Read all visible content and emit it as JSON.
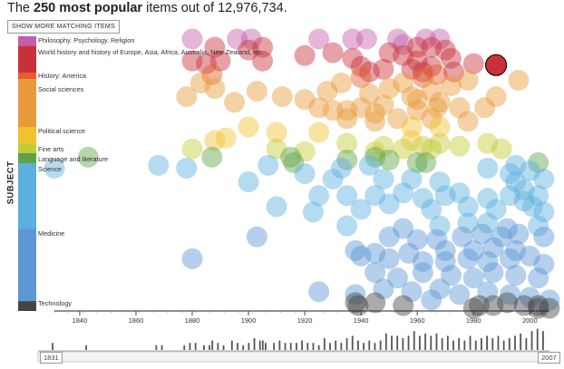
{
  "header": {
    "title_prefix": "The ",
    "title_bold": "250 most popular",
    "title_suffix": " items out of 12,976,734.",
    "show_more_label": "SHOW MORE MATCHING ITEMS"
  },
  "axis": {
    "y_label": "SUBJECT",
    "x_ticks": [
      "1840",
      "1860",
      "1880",
      "1900",
      "1920",
      "1940",
      "1960",
      "1980",
      "2000"
    ]
  },
  "slider": {
    "start_label": "1831",
    "end_label": "2007"
  },
  "chart_data": {
    "type": "scatter",
    "title": "",
    "xlabel": "",
    "ylabel": "SUBJECT",
    "xlim": [
      1831,
      2007
    ],
    "subjects": [
      {
        "name": "Philosophy. Psychology. Religion",
        "from": 0,
        "to": 3.5,
        "color": "#c55ea8"
      },
      {
        "name": "World history and history of Europe, Asia, Africa, Australia, New Zealand, etc.",
        "from": 3.5,
        "to": 13.2,
        "color": "#c8313a"
      },
      {
        "name": "History: America",
        "from": 13.2,
        "to": 15.6,
        "color": "#e25e2b"
      },
      {
        "name": "Social sciences",
        "from": 15.6,
        "to": 33,
        "color": "#e8993a"
      },
      {
        "name": "Political science",
        "from": 33,
        "to": 39,
        "color": "#f2c22e"
      },
      {
        "name": "Fine arts",
        "from": 39,
        "to": 42.5,
        "color": "#c3cc35"
      },
      {
        "name": "Language and literature",
        "from": 42.5,
        "to": 46.2,
        "color": "#5ea347"
      },
      {
        "name": "Science",
        "from": 46.2,
        "to": 70,
        "color": "#5bb0e0"
      },
      {
        "name": "Medicine",
        "from": 70,
        "to": 96.4,
        "color": "#5c97d4"
      },
      {
        "name": "Technology",
        "from": 96.4,
        "to": 100,
        "color": "#444444"
      }
    ],
    "points": [
      [
        1880,
        1
      ],
      [
        1896,
        1
      ],
      [
        1901,
        1
      ],
      [
        1925,
        1
      ],
      [
        1937,
        1
      ],
      [
        1942,
        1
      ],
      [
        1953,
        1
      ],
      [
        1963,
        1
      ],
      [
        1968,
        1
      ],
      [
        1888,
        4
      ],
      [
        1900,
        5
      ],
      [
        1905,
        4
      ],
      [
        1955,
        3
      ],
      [
        1960,
        4
      ],
      [
        1965,
        4
      ],
      [
        1970,
        5
      ],
      [
        1880,
        9
      ],
      [
        1885,
        10
      ],
      [
        1890,
        9
      ],
      [
        1905,
        9
      ],
      [
        1920,
        7
      ],
      [
        1930,
        6
      ],
      [
        1937,
        8
      ],
      [
        1950,
        6
      ],
      [
        1955,
        7
      ],
      [
        1960,
        9
      ],
      [
        1965,
        11
      ],
      [
        1972,
        8
      ],
      [
        1980,
        10
      ],
      [
        1887,
        14
      ],
      [
        1940,
        11
      ],
      [
        1943,
        13
      ],
      [
        1948,
        12
      ],
      [
        1958,
        12
      ],
      [
        1962,
        13
      ],
      [
        1967,
        14
      ],
      [
        1973,
        13
      ],
      [
        1883,
        17
      ],
      [
        1888,
        19
      ],
      [
        1878,
        22
      ],
      [
        1895,
        24
      ],
      [
        1920,
        23
      ],
      [
        1928,
        20
      ],
      [
        1933,
        17
      ],
      [
        1940,
        15
      ],
      [
        1943,
        21
      ],
      [
        1948,
        25
      ],
      [
        1950,
        19
      ],
      [
        1955,
        17
      ],
      [
        1958,
        22
      ],
      [
        1962,
        15
      ],
      [
        1965,
        20
      ],
      [
        1968,
        24
      ],
      [
        1972,
        18
      ],
      [
        1978,
        16
      ],
      [
        1984,
        26
      ],
      [
        1996,
        16
      ],
      [
        1903,
        20
      ],
      [
        1912,
        22
      ],
      [
        1925,
        26
      ],
      [
        1935,
        27
      ],
      [
        1945,
        28
      ],
      [
        1960,
        27
      ],
      [
        1965,
        30
      ],
      [
        1975,
        26
      ],
      [
        1988,
        22
      ],
      [
        1960,
        23
      ],
      [
        1967,
        26
      ],
      [
        1940,
        26
      ],
      [
        1930,
        27
      ],
      [
        1935,
        30
      ],
      [
        1945,
        31
      ],
      [
        1953,
        30
      ],
      [
        1958,
        33
      ],
      [
        1968,
        33
      ],
      [
        1978,
        31
      ],
      [
        1900,
        33
      ],
      [
        1910,
        35
      ],
      [
        1925,
        35
      ],
      [
        1888,
        38
      ],
      [
        1892,
        37
      ],
      [
        1935,
        39
      ],
      [
        1948,
        40
      ],
      [
        1958,
        38
      ],
      [
        1962,
        40
      ],
      [
        1968,
        39
      ],
      [
        1975,
        40
      ],
      [
        1985,
        39
      ],
      [
        1990,
        41
      ],
      [
        1880,
        41
      ],
      [
        1910,
        41
      ],
      [
        1920,
        42
      ],
      [
        1945,
        42
      ],
      [
        1955,
        41
      ],
      [
        1965,
        41
      ],
      [
        1843,
        44
      ],
      [
        1887,
        44
      ],
      [
        1915,
        44
      ],
      [
        1935,
        45
      ],
      [
        1945,
        44
      ],
      [
        1950,
        45
      ],
      [
        1960,
        46
      ],
      [
        1831,
        48
      ],
      [
        1868,
        47
      ],
      [
        1878,
        48
      ],
      [
        1907,
        47
      ],
      [
        1916,
        46
      ],
      [
        1933,
        48
      ],
      [
        1943,
        47
      ],
      [
        1963,
        46
      ],
      [
        1985,
        48
      ],
      [
        1995,
        47
      ],
      [
        2003,
        46
      ],
      [
        1900,
        53
      ],
      [
        1920,
        50
      ],
      [
        1930,
        52
      ],
      [
        1948,
        52
      ],
      [
        1958,
        52
      ],
      [
        1968,
        53
      ],
      [
        1995,
        53
      ],
      [
        1993,
        50
      ],
      [
        2000,
        49
      ],
      [
        2005,
        52
      ],
      [
        1925,
        58
      ],
      [
        1935,
        58
      ],
      [
        1945,
        58
      ],
      [
        1955,
        57
      ],
      [
        1962,
        59
      ],
      [
        1970,
        58
      ],
      [
        1975,
        57
      ],
      [
        1985,
        59
      ],
      [
        1993,
        58
      ],
      [
        1998,
        56
      ],
      [
        2003,
        58
      ],
      [
        1910,
        62
      ],
      [
        1923,
        64
      ],
      [
        1940,
        63
      ],
      [
        1950,
        61
      ],
      [
        1965,
        63
      ],
      [
        1978,
        62
      ],
      [
        1988,
        63
      ],
      [
        1998,
        60
      ],
      [
        2001,
        62
      ],
      [
        2005,
        64
      ],
      [
        1935,
        69
      ],
      [
        1955,
        70
      ],
      [
        1968,
        69
      ],
      [
        1978,
        68
      ],
      [
        1985,
        68
      ],
      [
        1992,
        70
      ],
      [
        2003,
        69
      ],
      [
        1903,
        73
      ],
      [
        1950,
        73
      ],
      [
        1960,
        74
      ],
      [
        1967,
        74
      ],
      [
        1976,
        73
      ],
      [
        1983,
        72
      ],
      [
        1990,
        73
      ],
      [
        1996,
        72
      ],
      [
        2005,
        73
      ],
      [
        1938,
        78
      ],
      [
        1945,
        79
      ],
      [
        1957,
        79
      ],
      [
        1970,
        78
      ],
      [
        1980,
        78
      ],
      [
        1987,
        77
      ],
      [
        1995,
        78
      ],
      [
        2000,
        80
      ],
      [
        1880,
        81
      ],
      [
        1940,
        80
      ],
      [
        1950,
        81
      ],
      [
        1962,
        82
      ],
      [
        1970,
        82
      ],
      [
        1978,
        81
      ],
      [
        1985,
        82
      ],
      [
        1993,
        81
      ],
      [
        2005,
        83
      ],
      [
        1945,
        86
      ],
      [
        1953,
        88
      ],
      [
        1962,
        86
      ],
      [
        1972,
        87
      ],
      [
        1980,
        88
      ],
      [
        1987,
        86
      ],
      [
        1995,
        87
      ],
      [
        2003,
        88
      ],
      [
        1925,
        93
      ],
      [
        1938,
        94
      ],
      [
        1948,
        92
      ],
      [
        1958,
        93
      ],
      [
        1968,
        92
      ],
      [
        1975,
        94
      ],
      [
        1985,
        93
      ],
      [
        1993,
        94
      ],
      [
        2000,
        95
      ],
      [
        1938,
        97
      ],
      [
        1945,
        97
      ],
      [
        1955,
        98
      ],
      [
        1965,
        96
      ],
      [
        1982,
        98
      ],
      [
        1992,
        97
      ],
      [
        1998,
        98
      ],
      [
        2003,
        99
      ],
      [
        2007,
        96
      ],
      [
        1939,
        98
      ],
      [
        1980,
        99
      ],
      [
        1987,
        98
      ],
      [
        2003,
        98
      ],
      [
        2007,
        99
      ]
    ],
    "highlight": {
      "year": 1988,
      "subject_position": 10.5
    },
    "histogram": [
      [
        1831,
        3
      ],
      [
        1843,
        2
      ],
      [
        1868,
        2
      ],
      [
        1870,
        2
      ],
      [
        1878,
        2
      ],
      [
        1880,
        3
      ],
      [
        1882,
        3
      ],
      [
        1885,
        2
      ],
      [
        1887,
        2
      ],
      [
        1888,
        4
      ],
      [
        1890,
        3
      ],
      [
        1892,
        2
      ],
      [
        1895,
        4
      ],
      [
        1897,
        3
      ],
      [
        1899,
        2
      ],
      [
        1901,
        3
      ],
      [
        1903,
        5
      ],
      [
        1905,
        4
      ],
      [
        1906,
        4
      ],
      [
        1907,
        3
      ],
      [
        1910,
        3
      ],
      [
        1912,
        4
      ],
      [
        1914,
        3
      ],
      [
        1916,
        3
      ],
      [
        1918,
        3
      ],
      [
        1920,
        4
      ],
      [
        1922,
        3
      ],
      [
        1924,
        3
      ],
      [
        1926,
        2
      ],
      [
        1928,
        5
      ],
      [
        1930,
        3
      ],
      [
        1932,
        4
      ],
      [
        1934,
        3
      ],
      [
        1936,
        5
      ],
      [
        1938,
        6
      ],
      [
        1940,
        4
      ],
      [
        1942,
        3
      ],
      [
        1944,
        4
      ],
      [
        1946,
        3
      ],
      [
        1948,
        4
      ],
      [
        1950,
        7
      ],
      [
        1952,
        6
      ],
      [
        1954,
        6
      ],
      [
        1956,
        5
      ],
      [
        1958,
        6
      ],
      [
        1960,
        8
      ],
      [
        1962,
        6
      ],
      [
        1964,
        7
      ],
      [
        1966,
        6
      ],
      [
        1968,
        7
      ],
      [
        1970,
        5
      ],
      [
        1972,
        6
      ],
      [
        1974,
        4
      ],
      [
        1976,
        5
      ],
      [
        1978,
        4
      ],
      [
        1980,
        6
      ],
      [
        1982,
        4
      ],
      [
        1984,
        5
      ],
      [
        1986,
        6
      ],
      [
        1988,
        5
      ],
      [
        1990,
        6
      ],
      [
        1992,
        4
      ],
      [
        1994,
        5
      ],
      [
        1996,
        6
      ],
      [
        1998,
        7
      ],
      [
        2000,
        5
      ],
      [
        2002,
        8
      ],
      [
        2004,
        9
      ],
      [
        2006,
        8
      ]
    ]
  }
}
